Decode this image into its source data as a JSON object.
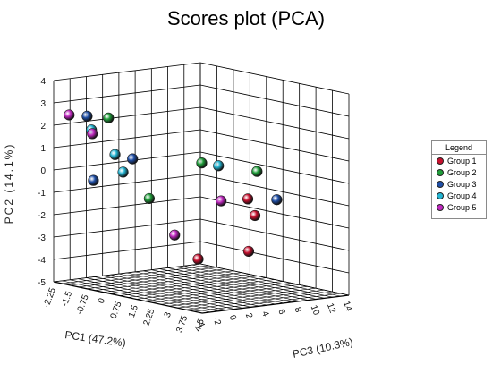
{
  "chart_data": {
    "type": "scatter",
    "title": "Scores plot (PCA)",
    "xlabel": "PC1 (47.2%)",
    "ylabel": "PC2 (14.1%)",
    "zlabel": "PC3 (10.3%)",
    "projection": "3d",
    "grid": true,
    "legend_position": "right",
    "legend_title": "Legend",
    "x_ticks": [
      "-4",
      "-2",
      "0",
      "2",
      "4",
      "6",
      "8",
      "10",
      "12",
      "14"
    ],
    "y_ticks": [
      "-5",
      "-4",
      "-3",
      "-2",
      "-1",
      "0",
      "1",
      "2",
      "3",
      "4"
    ],
    "z_ticks": [
      "-2.25",
      "-1.5",
      "-0.75",
      "0",
      "0.75",
      "1.5",
      "2.25",
      "3",
      "3.75",
      "4.5"
    ],
    "xlim": [
      -4,
      14
    ],
    "ylim": [
      -5,
      4
    ],
    "zlim": [
      -2.25,
      4.5
    ],
    "series": [
      {
        "name": "Group 1",
        "color": "#c8102e",
        "points": [
          {
            "x": 9.0,
            "y": -4.2,
            "z": -0.5
          },
          {
            "x": 12.5,
            "y": -3.8,
            "z": 0.5
          },
          {
            "x": 7.0,
            "y": -0.8,
            "z": 2.5
          },
          {
            "x": 7.2,
            "y": -1.5,
            "z": 2.75
          }
        ]
      },
      {
        "name": "Group 2",
        "color": "#1f9e3a",
        "points": [
          {
            "x": -2.0,
            "y": 2.6,
            "z": -0.5
          },
          {
            "x": 3.5,
            "y": 0.8,
            "z": 1.7
          },
          {
            "x": -0.5,
            "y": -0.8,
            "z": 0.8
          },
          {
            "x": 3.0,
            "y": 1.0,
            "z": 4.4
          }
        ]
      },
      {
        "name": "Group 3",
        "color": "#1f4fa8",
        "points": [
          {
            "x": -3.0,
            "y": 2.6,
            "z": -1.1
          },
          {
            "x": -1.2,
            "y": 0.9,
            "z": 0.3
          },
          {
            "x": 6.5,
            "y": -0.5,
            "z": 4.0
          },
          {
            "x": 0.2,
            "y": -0.6,
            "z": -2.0
          }
        ]
      },
      {
        "name": "Group 4",
        "color": "#23b5d3",
        "points": [
          {
            "x": 0.5,
            "y": 1.6,
            "z": -2.2
          },
          {
            "x": 1.5,
            "y": 0.6,
            "z": -1.5
          },
          {
            "x": 0.6,
            "y": 0.0,
            "z": -0.8
          },
          {
            "x": -2.0,
            "y": 1.5,
            "z": 4.5
          }
        ]
      },
      {
        "name": "Group 5",
        "color": "#c028c0",
        "points": [
          {
            "x": 1.0,
            "y": 2.0,
            "z": -3.4
          },
          {
            "x": 2.5,
            "y": 1.2,
            "z": -2.9
          },
          {
            "x": 7.5,
            "y": -1.2,
            "z": 1.1
          },
          {
            "x": 4.5,
            "y": -2.8,
            "z": 0.1
          }
        ]
      }
    ]
  }
}
